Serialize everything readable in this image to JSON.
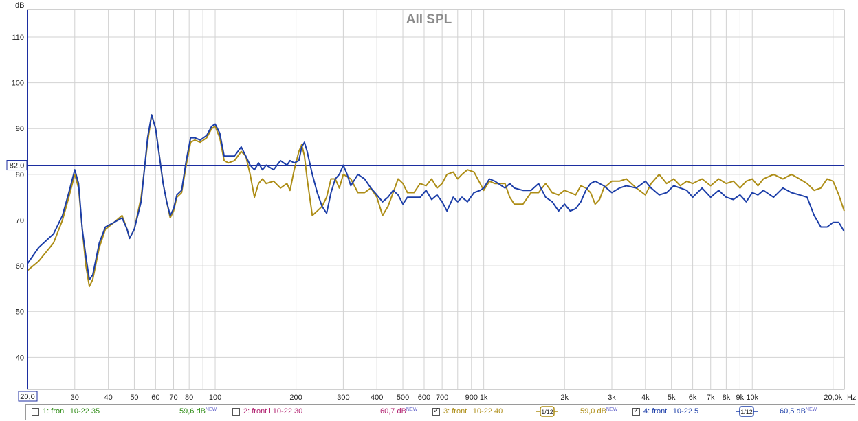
{
  "chart_data": {
    "type": "line",
    "title": "All SPL",
    "ylabel": "dB",
    "xlabel": "Hz",
    "xscale": "log",
    "xlim": [
      20,
      22000
    ],
    "ylim": [
      33,
      116
    ],
    "grid": true,
    "y_ticks": [
      40,
      50,
      60,
      70,
      80,
      90,
      100,
      110
    ],
    "x_ticks": [
      {
        "v": 30,
        "label": "30"
      },
      {
        "v": 40,
        "label": "40"
      },
      {
        "v": 50,
        "label": "50"
      },
      {
        "v": 60,
        "label": "60"
      },
      {
        "v": 70,
        "label": "70"
      },
      {
        "v": 80,
        "label": "80"
      },
      {
        "v": 100,
        "label": "100"
      },
      {
        "v": 200,
        "label": "200"
      },
      {
        "v": 300,
        "label": "300"
      },
      {
        "v": 400,
        "label": "400"
      },
      {
        "v": 500,
        "label": "500"
      },
      {
        "v": 600,
        "label": "600"
      },
      {
        "v": 700,
        "label": "700"
      },
      {
        "v": 900,
        "label": "900"
      },
      {
        "v": 1000,
        "label": "1k"
      },
      {
        "v": 2000,
        "label": "2k"
      },
      {
        "v": 3000,
        "label": "3k"
      },
      {
        "v": 4000,
        "label": "4k"
      },
      {
        "v": 5000,
        "label": "5k"
      },
      {
        "v": 6000,
        "label": "6k"
      },
      {
        "v": 7000,
        "label": "7k"
      },
      {
        "v": 8000,
        "label": "8k"
      },
      {
        "v": 9000,
        "label": "9k"
      },
      {
        "v": 10000,
        "label": "10k"
      },
      {
        "v": 20000,
        "label": "20,0k"
      }
    ],
    "x_start_label": "20,0",
    "reference_level": 82.0,
    "reference_label": "82,0",
    "series": [
      {
        "name": "3: front l 10-22 40",
        "color": "#ad8d16",
        "points": [
          [
            20,
            59
          ],
          [
            22,
            61
          ],
          [
            25,
            65
          ],
          [
            27,
            70
          ],
          [
            28.5,
            75
          ],
          [
            30,
            80
          ],
          [
            31,
            77
          ],
          [
            32,
            68
          ],
          [
            33,
            60
          ],
          [
            34,
            55.5
          ],
          [
            35,
            57
          ],
          [
            37,
            64
          ],
          [
            39,
            68
          ],
          [
            42,
            69.5
          ],
          [
            45,
            71
          ],
          [
            47,
            68
          ],
          [
            48,
            66
          ],
          [
            50,
            68
          ],
          [
            53,
            75
          ],
          [
            56,
            87
          ],
          [
            58,
            93
          ],
          [
            60,
            90
          ],
          [
            62,
            84
          ],
          [
            64,
            78
          ],
          [
            66,
            74
          ],
          [
            68,
            70.5
          ],
          [
            70,
            72
          ],
          [
            72,
            75
          ],
          [
            75,
            76
          ],
          [
            78,
            82
          ],
          [
            81,
            87
          ],
          [
            84,
            87.5
          ],
          [
            88,
            87
          ],
          [
            93,
            88
          ],
          [
            97,
            90
          ],
          [
            100,
            90.5
          ],
          [
            104,
            88
          ],
          [
            108,
            83
          ],
          [
            112,
            82.5
          ],
          [
            118,
            83
          ],
          [
            125,
            85
          ],
          [
            130,
            84
          ],
          [
            135,
            80
          ],
          [
            140,
            75
          ],
          [
            145,
            78
          ],
          [
            150,
            79
          ],
          [
            155,
            78
          ],
          [
            165,
            78.5
          ],
          [
            175,
            77
          ],
          [
            185,
            78
          ],
          [
            190,
            76.5
          ],
          [
            197,
            81
          ],
          [
            205,
            85
          ],
          [
            210,
            86.5
          ],
          [
            215,
            84
          ],
          [
            220,
            79
          ],
          [
            230,
            71
          ],
          [
            240,
            72
          ],
          [
            250,
            73
          ],
          [
            260,
            75
          ],
          [
            270,
            79
          ],
          [
            280,
            79
          ],
          [
            290,
            77
          ],
          [
            300,
            80
          ],
          [
            320,
            79
          ],
          [
            340,
            76
          ],
          [
            360,
            76
          ],
          [
            380,
            77
          ],
          [
            400,
            75
          ],
          [
            420,
            71
          ],
          [
            440,
            73
          ],
          [
            460,
            76
          ],
          [
            480,
            79
          ],
          [
            500,
            78
          ],
          [
            520,
            76
          ],
          [
            550,
            76
          ],
          [
            580,
            78
          ],
          [
            610,
            77.5
          ],
          [
            640,
            79
          ],
          [
            670,
            77
          ],
          [
            700,
            78
          ],
          [
            730,
            80
          ],
          [
            770,
            80.5
          ],
          [
            800,
            79
          ],
          [
            830,
            80
          ],
          [
            870,
            81
          ],
          [
            920,
            80.5
          ],
          [
            970,
            78
          ],
          [
            1000,
            76.5
          ],
          [
            1050,
            78.5
          ],
          [
            1100,
            78
          ],
          [
            1200,
            78
          ],
          [
            1250,
            75
          ],
          [
            1300,
            73.5
          ],
          [
            1400,
            73.5
          ],
          [
            1500,
            76
          ],
          [
            1600,
            76
          ],
          [
            1700,
            78
          ],
          [
            1800,
            76
          ],
          [
            1900,
            75.5
          ],
          [
            2000,
            76.5
          ],
          [
            2100,
            76
          ],
          [
            2200,
            75.5
          ],
          [
            2300,
            77.5
          ],
          [
            2400,
            77
          ],
          [
            2500,
            76
          ],
          [
            2600,
            73.5
          ],
          [
            2700,
            74.5
          ],
          [
            2800,
            77
          ],
          [
            3000,
            78.5
          ],
          [
            3200,
            78.5
          ],
          [
            3400,
            79
          ],
          [
            3700,
            77
          ],
          [
            4000,
            75.5
          ],
          [
            4200,
            78
          ],
          [
            4500,
            80
          ],
          [
            4800,
            78
          ],
          [
            5100,
            79
          ],
          [
            5400,
            77.5
          ],
          [
            5700,
            78.5
          ],
          [
            6000,
            78
          ],
          [
            6500,
            79
          ],
          [
            7000,
            77.5
          ],
          [
            7500,
            79
          ],
          [
            8000,
            78
          ],
          [
            8500,
            78.5
          ],
          [
            9000,
            77
          ],
          [
            9500,
            78.5
          ],
          [
            10000,
            79
          ],
          [
            10500,
            77.5
          ],
          [
            11000,
            79
          ],
          [
            12000,
            80
          ],
          [
            13000,
            79
          ],
          [
            14000,
            80
          ],
          [
            15000,
            79
          ],
          [
            16000,
            78
          ],
          [
            17000,
            76.5
          ],
          [
            18000,
            77
          ],
          [
            19000,
            79
          ],
          [
            20000,
            78.5
          ],
          [
            21000,
            75.5
          ],
          [
            22000,
            72
          ]
        ]
      },
      {
        "name": "4: front l 10-22 5",
        "color": "#1c3ea8",
        "points": [
          [
            20,
            60.5
          ],
          [
            22,
            64
          ],
          [
            25,
            67
          ],
          [
            27,
            71
          ],
          [
            28.5,
            76
          ],
          [
            30,
            81
          ],
          [
            31,
            78
          ],
          [
            32,
            68
          ],
          [
            33,
            62
          ],
          [
            34,
            57
          ],
          [
            35,
            58
          ],
          [
            37,
            65
          ],
          [
            39,
            68.5
          ],
          [
            42,
            69.5
          ],
          [
            45,
            70.5
          ],
          [
            47,
            68
          ],
          [
            48,
            66
          ],
          [
            50,
            68
          ],
          [
            53,
            74
          ],
          [
            56,
            88
          ],
          [
            58,
            93
          ],
          [
            60,
            90
          ],
          [
            62,
            84
          ],
          [
            64,
            78
          ],
          [
            66,
            74
          ],
          [
            68,
            71
          ],
          [
            70,
            72.5
          ],
          [
            72,
            75.5
          ],
          [
            75,
            76.5
          ],
          [
            78,
            83
          ],
          [
            81,
            88
          ],
          [
            84,
            88
          ],
          [
            88,
            87.5
          ],
          [
            93,
            88.5
          ],
          [
            97,
            90.5
          ],
          [
            100,
            91
          ],
          [
            104,
            89
          ],
          [
            108,
            84
          ],
          [
            112,
            84
          ],
          [
            118,
            84
          ],
          [
            125,
            86
          ],
          [
            130,
            84
          ],
          [
            135,
            82
          ],
          [
            140,
            81
          ],
          [
            145,
            82.5
          ],
          [
            150,
            81
          ],
          [
            155,
            82
          ],
          [
            165,
            81
          ],
          [
            175,
            83
          ],
          [
            185,
            82
          ],
          [
            190,
            83
          ],
          [
            197,
            82.5
          ],
          [
            205,
            83
          ],
          [
            210,
            86
          ],
          [
            215,
            87
          ],
          [
            220,
            85
          ],
          [
            230,
            80
          ],
          [
            240,
            76
          ],
          [
            250,
            73
          ],
          [
            260,
            71.5
          ],
          [
            270,
            76
          ],
          [
            280,
            79
          ],
          [
            290,
            80
          ],
          [
            300,
            82
          ],
          [
            310,
            80
          ],
          [
            320,
            77.5
          ],
          [
            340,
            80
          ],
          [
            360,
            79
          ],
          [
            380,
            77
          ],
          [
            400,
            75.5
          ],
          [
            420,
            74
          ],
          [
            440,
            75
          ],
          [
            460,
            76.5
          ],
          [
            480,
            75.5
          ],
          [
            500,
            73.5
          ],
          [
            520,
            75
          ],
          [
            550,
            75
          ],
          [
            580,
            75
          ],
          [
            610,
            76.5
          ],
          [
            640,
            74.5
          ],
          [
            670,
            75.5
          ],
          [
            700,
            74
          ],
          [
            730,
            72
          ],
          [
            770,
            75
          ],
          [
            800,
            74
          ],
          [
            830,
            75
          ],
          [
            870,
            74
          ],
          [
            920,
            76
          ],
          [
            970,
            76.5
          ],
          [
            1000,
            77
          ],
          [
            1050,
            79
          ],
          [
            1100,
            78.5
          ],
          [
            1200,
            77
          ],
          [
            1250,
            78
          ],
          [
            1300,
            77
          ],
          [
            1400,
            76.5
          ],
          [
            1500,
            76.5
          ],
          [
            1600,
            78
          ],
          [
            1700,
            75
          ],
          [
            1800,
            74
          ],
          [
            1900,
            72
          ],
          [
            2000,
            73.5
          ],
          [
            2100,
            72
          ],
          [
            2200,
            72.5
          ],
          [
            2300,
            74
          ],
          [
            2400,
            76.5
          ],
          [
            2500,
            78
          ],
          [
            2600,
            78.5
          ],
          [
            2700,
            78
          ],
          [
            2800,
            77.5
          ],
          [
            3000,
            76
          ],
          [
            3200,
            77
          ],
          [
            3400,
            77.5
          ],
          [
            3700,
            77
          ],
          [
            4000,
            78.5
          ],
          [
            4200,
            77
          ],
          [
            4500,
            75.5
          ],
          [
            4800,
            76
          ],
          [
            5100,
            77.5
          ],
          [
            5400,
            77
          ],
          [
            5700,
            76.5
          ],
          [
            6000,
            75
          ],
          [
            6500,
            77
          ],
          [
            7000,
            75
          ],
          [
            7500,
            76.5
          ],
          [
            8000,
            75
          ],
          [
            8500,
            74.5
          ],
          [
            9000,
            75.5
          ],
          [
            9500,
            74
          ],
          [
            10000,
            76
          ],
          [
            10500,
            75.5
          ],
          [
            11000,
            76.5
          ],
          [
            12000,
            75
          ],
          [
            13000,
            77
          ],
          [
            14000,
            76
          ],
          [
            15000,
            75.5
          ],
          [
            16000,
            75
          ],
          [
            17000,
            71
          ],
          [
            18000,
            68.5
          ],
          [
            19000,
            68.5
          ],
          [
            20000,
            69.5
          ],
          [
            21000,
            69.5
          ],
          [
            22000,
            67.5
          ]
        ]
      }
    ]
  },
  "legend": [
    {
      "label": "1: fron l 10-22 35",
      "checked": false,
      "value": "59,6 dB",
      "badge": "NEW",
      "color": "#2b8a12"
    },
    {
      "label": "2: front l 10-22 30",
      "checked": false,
      "value": "60,7 dB",
      "badge": "NEW",
      "color": "#b01f6e"
    },
    {
      "label": "3: front l 10-22 40",
      "checked": true,
      "value": "59,0 dB",
      "badge": "NEW",
      "color": "#ad8d16",
      "smoothing": "1/12"
    },
    {
      "label": "4: front l 10-22 5",
      "checked": true,
      "value": "60,5 dB",
      "badge": "NEW",
      "color": "#1c3ea8",
      "smoothing": "1/12"
    }
  ]
}
